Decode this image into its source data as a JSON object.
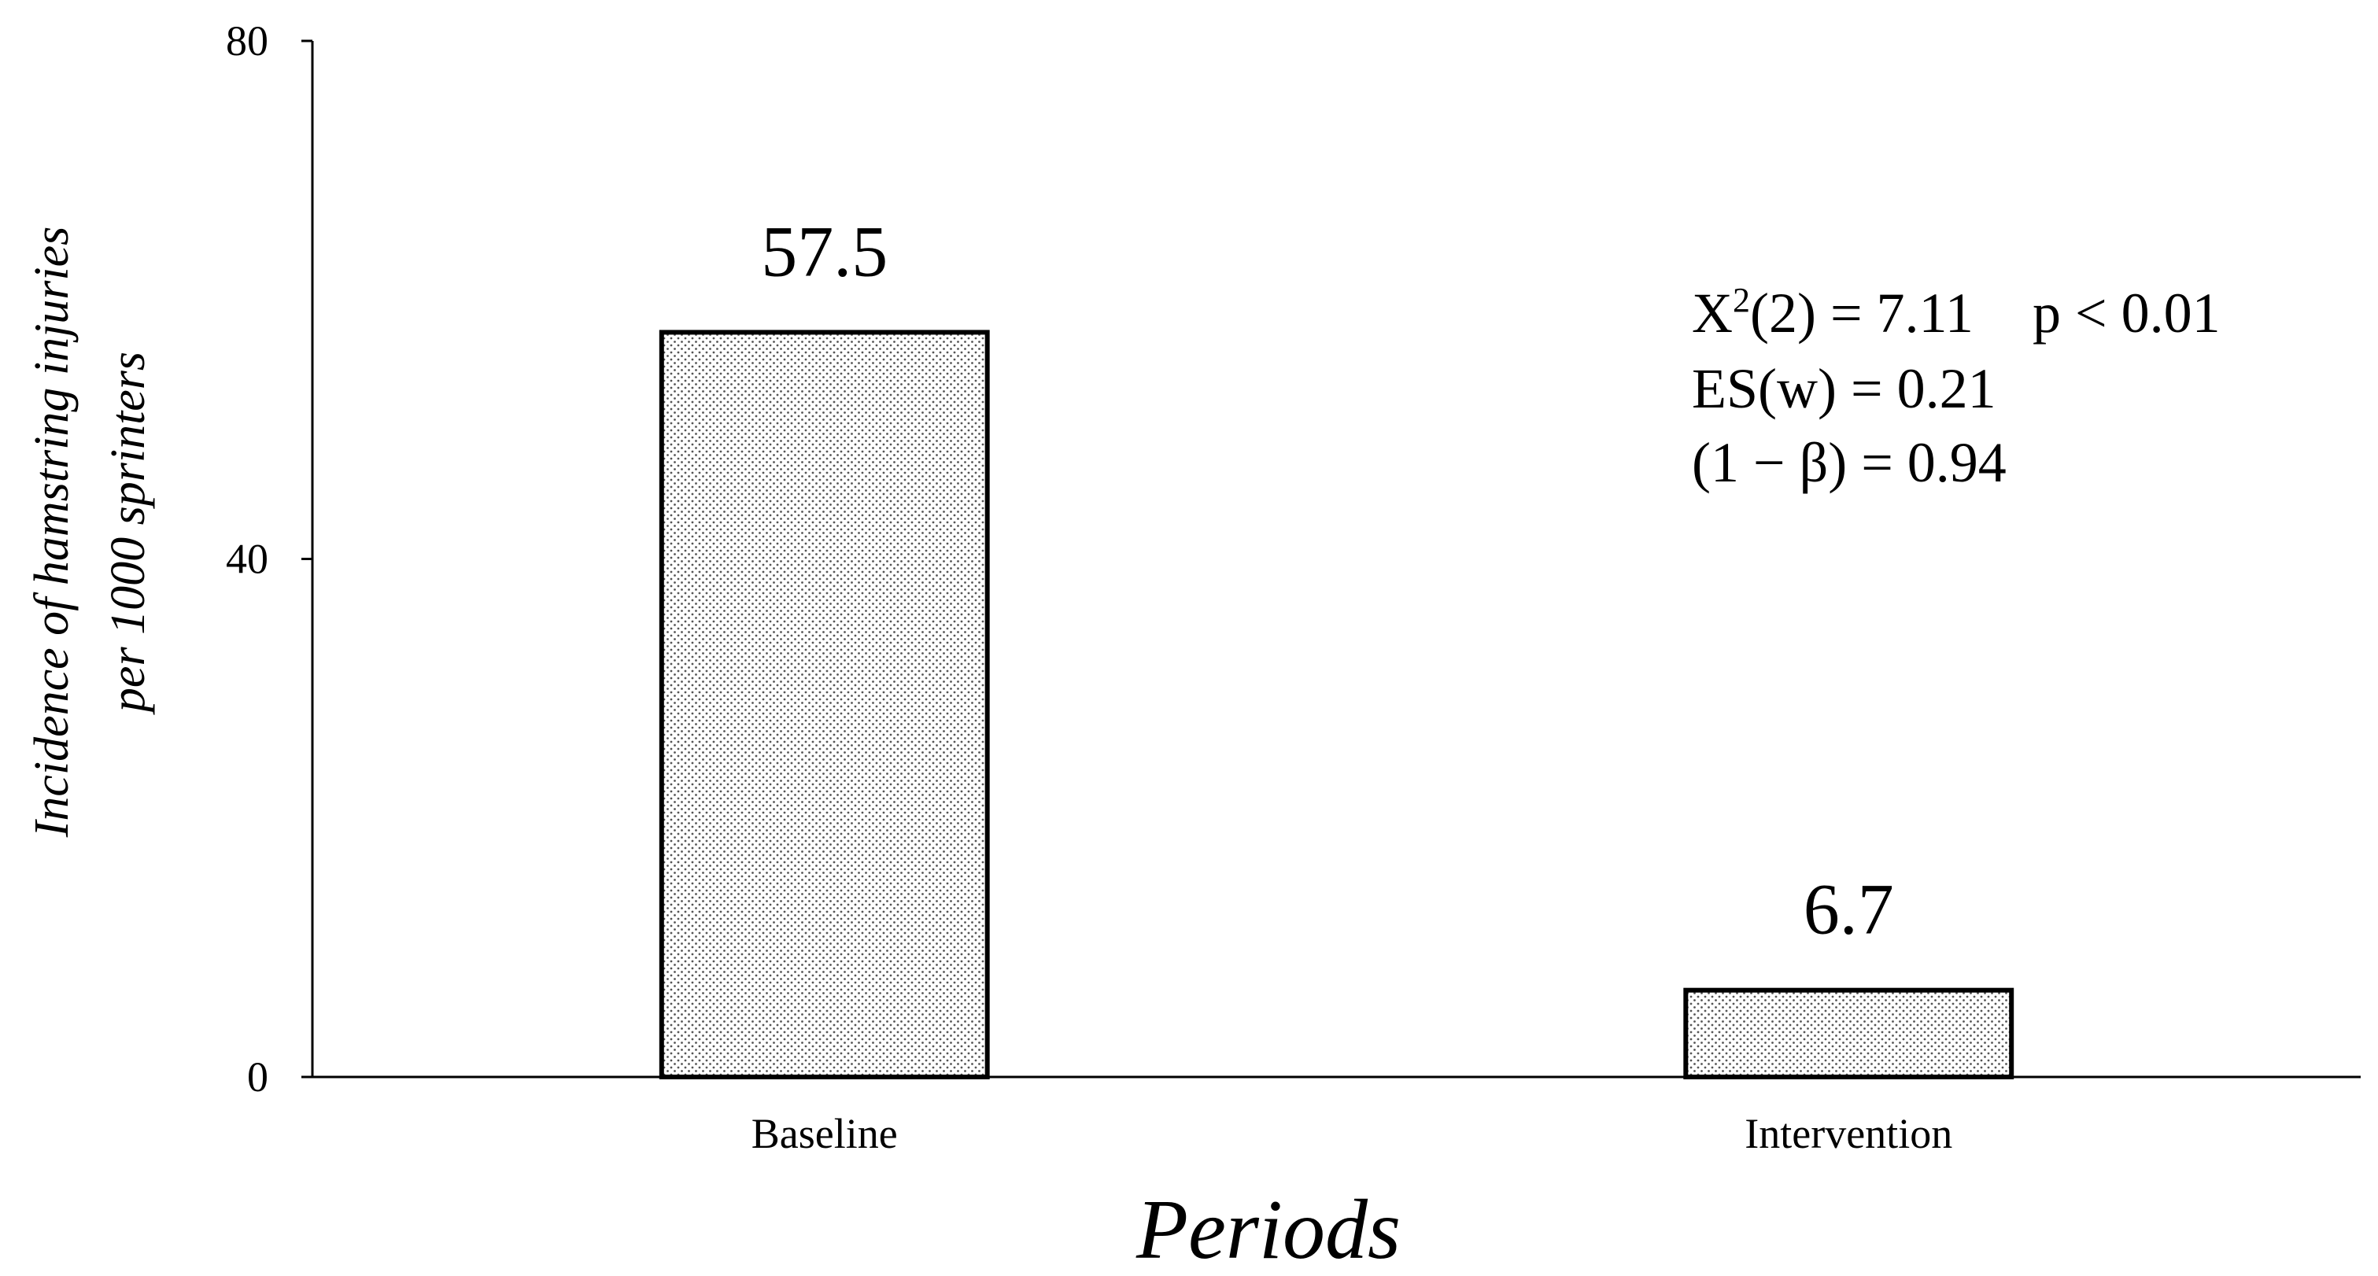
{
  "chart_data": {
    "type": "bar",
    "categories": [
      "Baseline",
      "Intervention"
    ],
    "values": [
      57.5,
      6.7
    ],
    "data_labels": [
      "57.5",
      "6.7"
    ],
    "xlabel": "Periods",
    "ylabel_lines": [
      "Incidence of hamstring injuries",
      "per 1000 sprinters"
    ],
    "ylim": [
      0,
      80
    ],
    "yticks": [
      0,
      40,
      80
    ],
    "ytick_labels": [
      "0",
      "40",
      "80"
    ],
    "grid": false,
    "legend": "none",
    "bar_fill": "dotted",
    "annotations": {
      "stat_line1_prefix": "X",
      "stat_line1_sup": "2",
      "stat_line1_suffix": "(2) = 7.11",
      "stat_line1_p": "p < 0.01",
      "stat_line2": "ES(w) = 0.21",
      "stat_line3": "(1 − β) = 0.94"
    }
  },
  "colors": {
    "axis": "#000000",
    "bar_outline": "#000000",
    "bar_dots": "#555555",
    "background": "#ffffff"
  }
}
